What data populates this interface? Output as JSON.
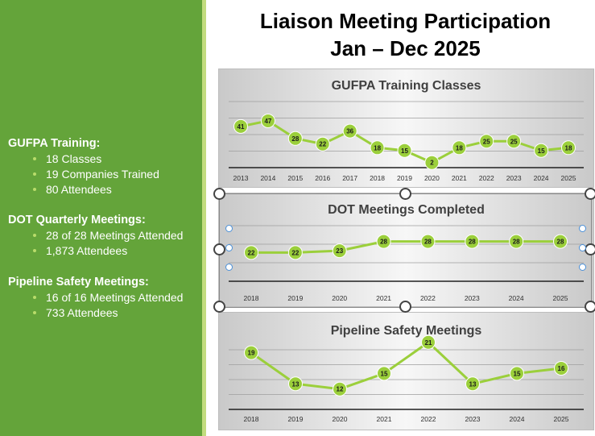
{
  "title": {
    "line1": "Liaison Meeting Participation",
    "line2": "Jan – Dec 2025"
  },
  "stats": {
    "gufpa": {
      "heading": "GUFPA Training:",
      "items": [
        "18 Classes",
        "19 Companies Trained",
        "80 Attendees"
      ]
    },
    "dot": {
      "heading": "DOT Quarterly Meetings:",
      "items": [
        "28 of 28 Meetings Attended",
        "1,873 Attendees"
      ]
    },
    "pipeline": {
      "heading": "Pipeline Safety Meetings:",
      "items": [
        "16 of 16 Meetings Attended",
        "733 Attendees"
      ]
    }
  },
  "colors": {
    "panel_green": "#64a43a",
    "stripe_green": "#c2dc7e",
    "bullet": "#b9dc6a",
    "series_line": "#9bcf3b",
    "series_marker": "#9bcf3b",
    "grid": "#9e9e9e",
    "axis": "#202020"
  },
  "chart_data": [
    {
      "type": "line",
      "title": "GUFPA Training Classes",
      "categories": [
        "2013",
        "2014",
        "2015",
        "2016",
        "2017",
        "2018",
        "2019",
        "2020",
        "2021",
        "2022",
        "2023",
        "2024",
        "2025"
      ],
      "series": [
        {
          "name": "GUFPA Training Classes",
          "values": [
            41,
            47,
            28,
            22,
            36,
            18,
            15,
            2,
            18,
            25,
            25,
            15,
            18
          ]
        }
      ],
      "ylim": [
        0,
        60
      ],
      "grid": true,
      "legend": "none",
      "xlabel": "",
      "ylabel": ""
    },
    {
      "type": "line",
      "title": "DOT Meetings Completed",
      "categories": [
        "2018",
        "2019",
        "2020",
        "2021",
        "2022",
        "2023",
        "2024",
        "2025"
      ],
      "series": [
        {
          "name": "DOT Meetings Completed",
          "values": [
            22,
            22,
            23,
            28,
            28,
            28,
            28,
            28
          ]
        }
      ],
      "ylim": [
        0,
        40
      ],
      "grid": true,
      "legend": "none",
      "xlabel": "",
      "ylabel": ""
    },
    {
      "type": "line",
      "title": "Pipeline Safety Meetings",
      "categories": [
        "2018",
        "2019",
        "2020",
        "2021",
        "2022",
        "2023",
        "2024",
        "2025"
      ],
      "series": [
        {
          "name": "Pipeline Safety Meetings",
          "values": [
            19,
            13,
            12,
            15,
            21,
            13,
            15,
            16
          ]
        }
      ],
      "ylim": [
        0,
        25
      ],
      "grid": true,
      "legend": "none",
      "xlabel": "",
      "ylabel": ""
    }
  ]
}
